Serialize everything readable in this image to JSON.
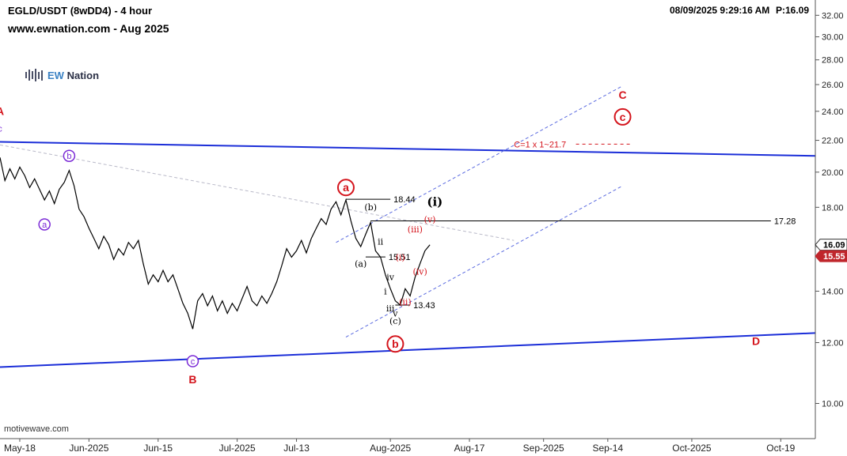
{
  "header": {
    "title": "EGLD/USDT (8wDD4) - 4 hour",
    "site": "www.ewnation.com  - Aug 2025",
    "timestamp": "08/09/2025 9:29:16 AM",
    "price_readout": "P:16.09",
    "logo_prefix": "EW",
    "logo_name": "Nation",
    "watermark": "motivewave.com"
  },
  "chart_data": {
    "type": "line",
    "title": "EGLD/USDT (8wDD4) - 4 hour",
    "y_scale": "log",
    "ylim": [
      9.0,
      33.5
    ],
    "y_ticks": [
      10,
      12,
      14,
      16,
      18,
      20,
      22,
      24,
      26,
      28,
      30,
      32
    ],
    "y_tick_labels": [
      "10.00",
      "12.00",
      "14.00",
      "16.00",
      "18.00",
      "20.00",
      "22.00",
      "24.00",
      "26.00",
      "28.00",
      "30.00",
      "32.00"
    ],
    "x_range": [
      "2025-05-14",
      "2025-10-26"
    ],
    "x_ticks": [
      "2025-05-18",
      "2025-06-01",
      "2025-06-15",
      "2025-07-01",
      "2025-07-13",
      "2025-08-01",
      "2025-08-17",
      "2025-09-01",
      "2025-09-14",
      "2025-10-01",
      "2025-10-19"
    ],
    "x_tick_labels": [
      "May-18",
      "Jun-2025",
      "Jun-15",
      "Jul-2025",
      "Jul-13",
      "Aug-2025",
      "Aug-17",
      "Sep-2025",
      "Sep-14",
      "Oct-2025",
      "Oct-19"
    ],
    "series": [
      {
        "color": "#000000",
        "points": [
          [
            "2025-05-14",
            20.9
          ],
          [
            "2025-05-15",
            19.5
          ],
          [
            "2025-05-16",
            20.2
          ],
          [
            "2025-05-17",
            19.6
          ],
          [
            "2025-05-18",
            20.3
          ],
          [
            "2025-05-19",
            19.8
          ],
          [
            "2025-05-20",
            19.1
          ],
          [
            "2025-05-21",
            19.6
          ],
          [
            "2025-05-22",
            19.0
          ],
          [
            "2025-05-23",
            18.4
          ],
          [
            "2025-05-24",
            18.9
          ],
          [
            "2025-05-25",
            18.2
          ],
          [
            "2025-05-26",
            19.0
          ],
          [
            "2025-05-27",
            19.4
          ],
          [
            "2025-05-28",
            20.1
          ],
          [
            "2025-05-29",
            19.2
          ],
          [
            "2025-05-30",
            17.9
          ],
          [
            "2025-05-31",
            17.5
          ],
          [
            "2025-06-01",
            16.9
          ],
          [
            "2025-06-02",
            16.4
          ],
          [
            "2025-06-03",
            15.9
          ],
          [
            "2025-06-04",
            16.5
          ],
          [
            "2025-06-05",
            16.1
          ],
          [
            "2025-06-06",
            15.4
          ],
          [
            "2025-06-07",
            15.9
          ],
          [
            "2025-06-08",
            15.6
          ],
          [
            "2025-06-09",
            16.2
          ],
          [
            "2025-06-10",
            15.9
          ],
          [
            "2025-06-11",
            16.3
          ],
          [
            "2025-06-12",
            15.2
          ],
          [
            "2025-06-13",
            14.3
          ],
          [
            "2025-06-14",
            14.7
          ],
          [
            "2025-06-15",
            14.4
          ],
          [
            "2025-06-16",
            14.9
          ],
          [
            "2025-06-17",
            14.4
          ],
          [
            "2025-06-18",
            14.7
          ],
          [
            "2025-06-19",
            14.1
          ],
          [
            "2025-06-20",
            13.5
          ],
          [
            "2025-06-21",
            13.1
          ],
          [
            "2025-06-22",
            12.5
          ],
          [
            "2025-06-23",
            13.6
          ],
          [
            "2025-06-24",
            13.9
          ],
          [
            "2025-06-25",
            13.4
          ],
          [
            "2025-06-26",
            13.8
          ],
          [
            "2025-06-27",
            13.2
          ],
          [
            "2025-06-28",
            13.6
          ],
          [
            "2025-06-29",
            13.1
          ],
          [
            "2025-06-30",
            13.5
          ],
          [
            "2025-07-01",
            13.2
          ],
          [
            "2025-07-02",
            13.7
          ],
          [
            "2025-07-03",
            14.2
          ],
          [
            "2025-07-04",
            13.6
          ],
          [
            "2025-07-05",
            13.4
          ],
          [
            "2025-07-06",
            13.8
          ],
          [
            "2025-07-07",
            13.5
          ],
          [
            "2025-07-08",
            13.9
          ],
          [
            "2025-07-09",
            14.4
          ],
          [
            "2025-07-10",
            15.1
          ],
          [
            "2025-07-11",
            15.9
          ],
          [
            "2025-07-12",
            15.5
          ],
          [
            "2025-07-13",
            15.8
          ],
          [
            "2025-07-14",
            16.3
          ],
          [
            "2025-07-15",
            15.7
          ],
          [
            "2025-07-16",
            16.4
          ],
          [
            "2025-07-17",
            16.9
          ],
          [
            "2025-07-18",
            17.4
          ],
          [
            "2025-07-19",
            17.1
          ],
          [
            "2025-07-20",
            17.9
          ],
          [
            "2025-07-21",
            18.3
          ],
          [
            "2025-07-22",
            17.6
          ],
          [
            "2025-07-23",
            18.4
          ],
          [
            "2025-07-24",
            17.3
          ],
          [
            "2025-07-25",
            16.4
          ],
          [
            "2025-07-26",
            16.0
          ],
          [
            "2025-07-27",
            16.6
          ],
          [
            "2025-07-28",
            17.2
          ],
          [
            "2025-07-29",
            15.8
          ],
          [
            "2025-07-30",
            15.5
          ],
          [
            "2025-07-31",
            14.7
          ],
          [
            "2025-08-01",
            14.1
          ],
          [
            "2025-08-02",
            13.6
          ],
          [
            "2025-08-03",
            13.43
          ],
          [
            "2025-08-04",
            14.1
          ],
          [
            "2025-08-05",
            13.8
          ],
          [
            "2025-08-06",
            14.6
          ],
          [
            "2025-08-07",
            15.2
          ],
          [
            "2025-08-08",
            15.8
          ],
          [
            "2025-08-09",
            16.09
          ]
        ]
      }
    ],
    "price_tags": [
      {
        "label": "16.09",
        "value": 16.09,
        "bg": "#ffffff",
        "fg": "#000000"
      },
      {
        "label": "15.55",
        "value": 15.55,
        "bg": "#c0262c",
        "fg": "#ffffff"
      }
    ],
    "trendlines": [
      {
        "from": [
          "2025-05-14",
          21.9
        ],
        "to": [
          "2025-10-26",
          21.0
        ],
        "color": "#1b2ed8",
        "style": "solid",
        "width": 2
      },
      {
        "from": [
          "2025-05-14",
          11.15
        ],
        "to": [
          "2025-10-26",
          12.35
        ],
        "color": "#1b2ed8",
        "style": "solid",
        "width": 2
      },
      {
        "from": [
          "2025-07-23",
          12.2
        ],
        "to": [
          "2025-09-17",
          19.2
        ],
        "color": "#5b6be0",
        "style": "dashed",
        "width": 1
      },
      {
        "from": [
          "2025-07-21",
          16.2
        ],
        "to": [
          "2025-09-17",
          25.9
        ],
        "color": "#5b6be0",
        "style": "dashed",
        "width": 1
      },
      {
        "from": [
          "2025-05-14",
          21.7
        ],
        "to": [
          "2025-08-26",
          16.3
        ],
        "color": "#b9b9c8",
        "style": "dashed",
        "width": 1
      }
    ],
    "hlines": [
      {
        "from": "2025-07-23",
        "to": "2025-08-01",
        "value": 18.44,
        "label": "18.44"
      },
      {
        "from": "2025-07-28",
        "to": "2025-10-17",
        "value": 17.28,
        "label": "17.28"
      },
      {
        "from": "2025-07-27",
        "to": "2025-07-31",
        "value": 15.51,
        "label": "15.51"
      },
      {
        "from": "2025-08-02",
        "to": "2025-08-05",
        "value": 13.43,
        "label": "13.43"
      }
    ],
    "projection": {
      "label": "C=1 x 1~21.7",
      "from": "2025-08-26",
      "to": "2025-09-19",
      "value": 21.75,
      "color": "#d4141c"
    },
    "annotations": [
      {
        "text": "A",
        "x": "2025-05-14",
        "y": 24.0,
        "color": "#d4141c",
        "circled": false
      },
      {
        "text": "c",
        "x": "2025-05-14",
        "y": 22.8,
        "color": "#7b2ad6",
        "circled": false
      },
      {
        "text": "b",
        "x": "2025-05-28",
        "y": 21.0,
        "color": "#7b2ad6",
        "circled": true
      },
      {
        "text": "a",
        "x": "2025-05-23",
        "y": 17.1,
        "color": "#7b2ad6",
        "circled": true
      },
      {
        "text": "c",
        "x": "2025-06-22",
        "y": 11.35,
        "color": "#7b2ad6",
        "circled": true
      },
      {
        "text": "B",
        "x": "2025-06-22",
        "y": 10.75,
        "color": "#d4141c",
        "circled": false
      },
      {
        "text": "a",
        "x": "2025-07-23",
        "y": 19.1,
        "color": "#d4141c",
        "circled": true,
        "big": true
      },
      {
        "text": "(b)",
        "x": "2025-07-28",
        "y": 18.0,
        "color": "#000000",
        "circled": false
      },
      {
        "text": "(a)",
        "x": "2025-07-26",
        "y": 15.2,
        "color": "#000000",
        "circled": false
      },
      {
        "text": "(c)",
        "x": "2025-08-02",
        "y": 12.8,
        "color": "#000000",
        "circled": false
      },
      {
        "text": "b",
        "x": "2025-08-02",
        "y": 11.95,
        "color": "#d4141c",
        "circled": true,
        "big": true
      },
      {
        "text": "ii",
        "x": "2025-07-30",
        "y": 16.25,
        "color": "#000000",
        "circled": false
      },
      {
        "text": "i",
        "x": "2025-07-31",
        "y": 14.0,
        "color": "#000000",
        "circled": false
      },
      {
        "text": "iii",
        "x": "2025-08-01",
        "y": 13.3,
        "color": "#000000",
        "circled": false
      },
      {
        "text": "iv",
        "x": "2025-08-01",
        "y": 14.6,
        "color": "#000000",
        "circled": false
      },
      {
        "text": "v",
        "x": "2025-08-02",
        "y": 13.1,
        "color": "#000000",
        "circled": false
      },
      {
        "text": "(i)",
        "x": "2025-08-03",
        "y": 15.5,
        "color": "#d4141c",
        "circled": false
      },
      {
        "text": "(ii)",
        "x": "2025-08-04",
        "y": 13.55,
        "color": "#d4141c",
        "circled": false
      },
      {
        "text": "(iii)",
        "x": "2025-08-06",
        "y": 16.85,
        "color": "#d4141c",
        "circled": false
      },
      {
        "text": "(iv)",
        "x": "2025-08-07",
        "y": 14.85,
        "color": "#d4141c",
        "circled": false
      },
      {
        "text": "(v)",
        "x": "2025-08-09",
        "y": 17.35,
        "color": "#d4141c",
        "circled": false
      },
      {
        "text": "(i)",
        "x": "2025-08-10",
        "y": 18.3,
        "color": "#000000",
        "circled": false,
        "big": true
      },
      {
        "text": "C",
        "x": "2025-09-17",
        "y": 25.2,
        "color": "#d4141c",
        "circled": false
      },
      {
        "text": "c",
        "x": "2025-09-17",
        "y": 23.6,
        "color": "#d4141c",
        "circled": true,
        "big": true
      },
      {
        "text": "D",
        "x": "2025-10-14",
        "y": 12.05,
        "color": "#d4141c",
        "circled": false
      }
    ]
  }
}
